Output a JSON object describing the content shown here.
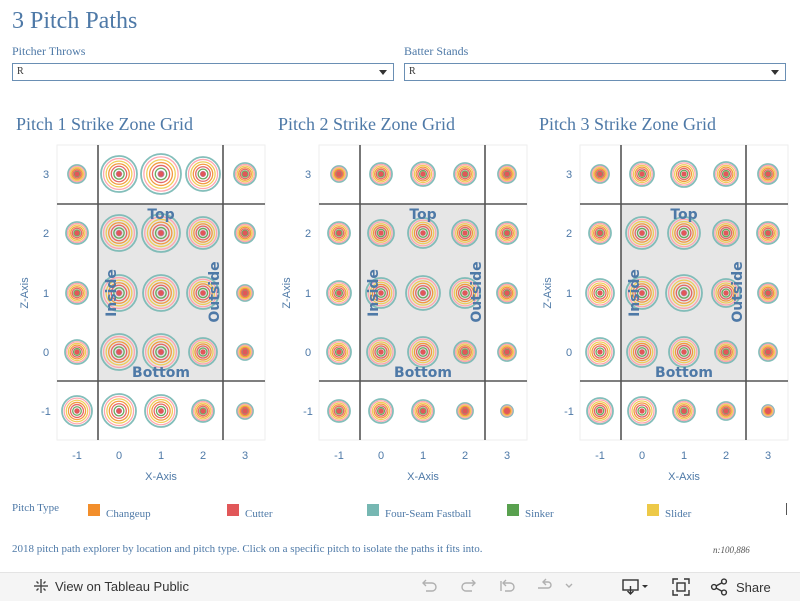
{
  "title": "3 Pitch Paths",
  "filters": [
    {
      "label": "Pitcher Throws",
      "value": "R"
    },
    {
      "label": "Batter Stands",
      "value": "R"
    }
  ],
  "chart_data": [
    {
      "type": "scatter",
      "title": "Pitch 1 Strike Zone Grid",
      "xlabel": "X-Axis",
      "ylabel": "Z-Axis",
      "x_ticks": [
        "-1",
        "0",
        "1",
        "2",
        "3"
      ],
      "z_ticks": [
        "3",
        "2",
        "1",
        "0",
        "-1"
      ],
      "zone_labels": [
        "Top",
        "Bottom",
        "Inside",
        "Outside"
      ],
      "sizes": [
        [
          0.45,
          0.9,
          1.0,
          0.85,
          0.55
        ],
        [
          0.55,
          0.9,
          0.95,
          0.8,
          0.5
        ],
        [
          0.55,
          0.9,
          0.9,
          0.8,
          0.4
        ],
        [
          0.6,
          0.9,
          0.9,
          0.7,
          0.4
        ],
        [
          0.75,
          0.85,
          0.8,
          0.55,
          0.4
        ]
      ]
    },
    {
      "type": "scatter",
      "title": "Pitch 2 Strike Zone Grid",
      "xlabel": "X-Axis",
      "ylabel": "Z-Axis",
      "x_ticks": [
        "-1",
        "0",
        "1",
        "2",
        "3"
      ],
      "z_ticks": [
        "3",
        "2",
        "1",
        "0",
        "-1"
      ],
      "zone_labels": [
        "Top",
        "Bottom",
        "Inside",
        "Outside"
      ],
      "sizes": [
        [
          0.4,
          0.55,
          0.6,
          0.55,
          0.45
        ],
        [
          0.55,
          0.65,
          0.75,
          0.65,
          0.55
        ],
        [
          0.6,
          0.75,
          0.85,
          0.75,
          0.5
        ],
        [
          0.6,
          0.7,
          0.75,
          0.55,
          0.45
        ],
        [
          0.55,
          0.6,
          0.55,
          0.4,
          0.3
        ]
      ]
    },
    {
      "type": "scatter",
      "title": "Pitch 3 Strike Zone Grid",
      "xlabel": "X-Axis",
      "ylabel": "Z-Axis",
      "x_ticks": [
        "-1",
        "0",
        "1",
        "2",
        "3"
      ],
      "z_ticks": [
        "3",
        "2",
        "1",
        "0",
        "-1"
      ],
      "zone_labels": [
        "Top",
        "Bottom",
        "Inside",
        "Outside"
      ],
      "sizes": [
        [
          0.45,
          0.6,
          0.65,
          0.6,
          0.5
        ],
        [
          0.55,
          0.8,
          0.8,
          0.65,
          0.55
        ],
        [
          0.7,
          0.8,
          0.9,
          0.7,
          0.5
        ],
        [
          0.7,
          0.75,
          0.75,
          0.55,
          0.45
        ],
        [
          0.65,
          0.7,
          0.55,
          0.45,
          0.3
        ]
      ]
    }
  ],
  "legend": {
    "title": "Pitch Type",
    "items": [
      {
        "label": "Changeup",
        "color": "#f28e2b"
      },
      {
        "label": "Cutter",
        "color": "#e15759"
      },
      {
        "label": "Four-Seam Fastball",
        "color": "#76b7b2"
      },
      {
        "label": "Sinker",
        "color": "#59a14f"
      },
      {
        "label": "Slider",
        "color": "#edc948"
      }
    ]
  },
  "ring_colors": [
    "#76b7b2",
    "#ff9da7",
    "#edc948",
    "#f28e2b",
    "#e15759",
    "#59a14f",
    "#b07aa1"
  ],
  "caption": "2018 pitch path explorer by location and pitch type. Click on a specific pitch to isolate the paths it fits into.",
  "count": "n:100,886",
  "toolbar": {
    "view_label": "View on Tableau Public",
    "share_label": "Share",
    "icons": [
      "tableau-icon",
      "undo-icon",
      "redo-icon",
      "revert-icon",
      "refresh-icon",
      "download-icon",
      "fullscreen-icon",
      "share-icon"
    ]
  }
}
